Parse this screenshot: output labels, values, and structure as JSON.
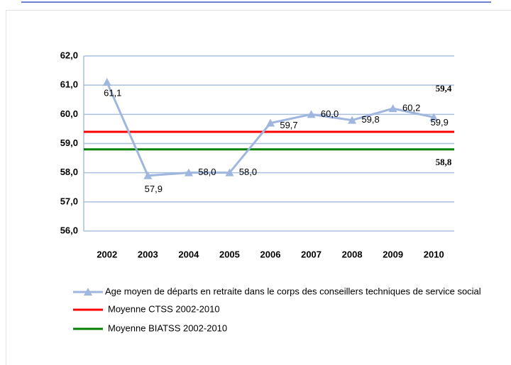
{
  "chart_data": {
    "type": "line",
    "categories": [
      "2002",
      "2003",
      "2004",
      "2005",
      "2006",
      "2007",
      "2008",
      "2009",
      "2010"
    ],
    "series": [
      {
        "name": "Age moyen de départs en retraite dans le corps des conseillers techniques de service social",
        "color": "#9fb6de",
        "values": [
          61.1,
          57.9,
          58.0,
          58.0,
          59.7,
          60.0,
          59.8,
          60.2,
          59.9
        ],
        "value_labels": [
          "61,1",
          "57,9",
          "58,0",
          "58,0",
          "59,7",
          "60,0",
          "59,8",
          "60,2",
          "59,9"
        ]
      }
    ],
    "reference_lines": [
      {
        "name": "Moyenne  CTSS 2002-2010",
        "color": "#ff0000",
        "value": 59.4,
        "value_label": "59,4"
      },
      {
        "name": "Moyenne  BIATSS 2002-2010",
        "color": "#008000",
        "value": 58.8,
        "value_label": "58,8"
      }
    ],
    "ylim": [
      56,
      62
    ],
    "yticks": [
      {
        "value": 56,
        "label": "56,0"
      },
      {
        "value": 57,
        "label": "57,0"
      },
      {
        "value": 58,
        "label": "58,0"
      },
      {
        "value": 59,
        "label": "59,0"
      },
      {
        "value": 60,
        "label": "60,0"
      },
      {
        "value": 61,
        "label": "61,0"
      },
      {
        "value": 62,
        "label": "62,0"
      }
    ],
    "grid": true
  }
}
